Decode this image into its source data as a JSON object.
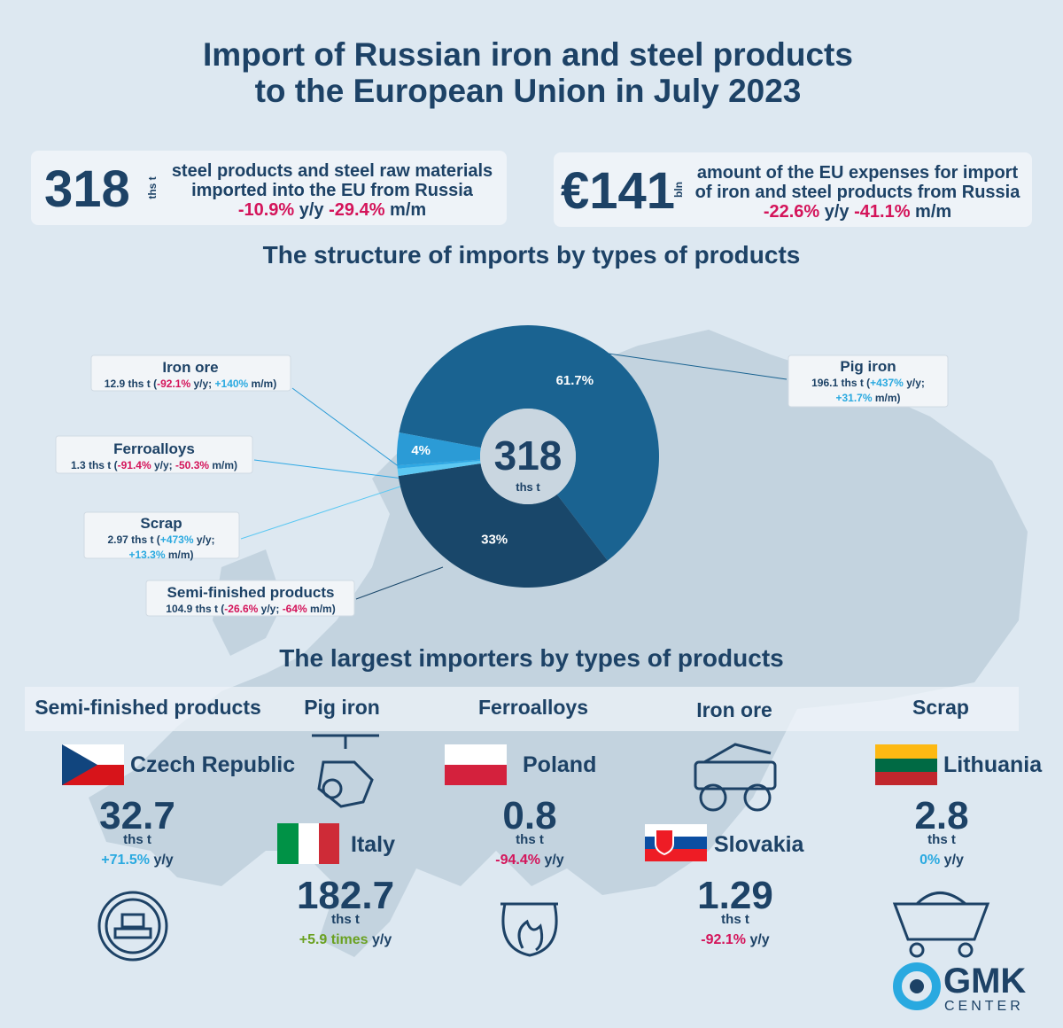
{
  "header": {
    "title_lines": [
      "Import of Russian iron and steel products",
      "to the European Union in July 2023"
    ]
  },
  "stats": [
    {
      "value": "318",
      "unit": "ths t",
      "lines": [
        "steel products and steel raw materials",
        "imported into the EU from Russia"
      ],
      "changes": [
        {
          "text": "-10.9%",
          "color": "#d4145a"
        },
        {
          "text": " y/y "
        },
        {
          "text": "-29.4%",
          "color": "#d4145a"
        },
        {
          "text": " m/m"
        }
      ]
    },
    {
      "value": "€141",
      "unit": "bln",
      "lines": [
        "amount of the EU expenses for import",
        "of iron and steel products from Russia"
      ],
      "changes": [
        {
          "text": "-22.6%",
          "color": "#d4145a"
        },
        {
          "text": " y/y "
        },
        {
          "text": "-41.1%",
          "color": "#d4145a"
        },
        {
          "text": " m/m"
        }
      ]
    }
  ],
  "chart_data": {
    "type": "pie",
    "title": "The structure of imports by types of products",
    "center_value": "318",
    "center_unit": "ths t",
    "categories": [
      "Pig iron",
      "Semi-finished products",
      "Scrap",
      "Ferroalloys",
      "Iron ore"
    ],
    "values": [
      61.7,
      33,
      0.9,
      0.4,
      4
    ],
    "value_labels": [
      "61.7%",
      "33%",
      null,
      null,
      "4%"
    ],
    "colors": [
      "#1a6391",
      "#19476a",
      "#5cc8f2",
      "#2fa8e4",
      "#2b9bd6"
    ],
    "details": [
      [
        [
          {
            "text": "196.1 ths t ("
          },
          {
            "text": "+437%",
            "color": "#29a9e0"
          },
          {
            "text": " y/y;"
          }
        ],
        [
          {
            "text": "+31.7%",
            "color": "#29a9e0"
          },
          {
            "text": " m/m)"
          }
        ]
      ],
      [
        [
          {
            "text": "104.9 ths t ("
          },
          {
            "text": "-26.6%",
            "color": "#d4145a"
          },
          {
            "text": " y/y; "
          },
          {
            "text": "-64%",
            "color": "#d4145a"
          },
          {
            "text": " m/m)"
          }
        ]
      ],
      [
        [
          {
            "text": "2.97 ths t ("
          },
          {
            "text": "+473%",
            "color": "#29a9e0"
          },
          {
            "text": " y/y;"
          }
        ],
        [
          {
            "text": "+13.3%",
            "color": "#29a9e0"
          },
          {
            "text": " m/m)"
          }
        ]
      ],
      [
        [
          {
            "text": "1.3 ths t ("
          },
          {
            "text": "-91.4%",
            "color": "#d4145a"
          },
          {
            "text": " y/y; "
          },
          {
            "text": "-50.3%",
            "color": "#d4145a"
          },
          {
            "text": " m/m)"
          }
        ]
      ],
      [
        [
          {
            "text": "12.9 ths t ("
          },
          {
            "text": "-92.1%",
            "color": "#d4145a"
          },
          {
            "text": " y/y; "
          },
          {
            "text": "+140%",
            "color": "#29a9e0"
          },
          {
            "text": " m/m)"
          }
        ]
      ]
    ]
  },
  "importers": {
    "title": "The largest importers by types of products",
    "columns": [
      {
        "heading": "Semi-finished products",
        "country": "Czech Republic",
        "value": "32.7",
        "unit": "ths t",
        "change": [
          {
            "text": "+71.5%",
            "color": "#29a9e0"
          },
          {
            "text": " y/y"
          }
        ]
      },
      {
        "heading": "Pig iron",
        "country": "Italy",
        "value": "182.7",
        "unit": "ths t",
        "change": [
          {
            "text": "+5.9 times",
            "color": "#6aa121"
          },
          {
            "text": " y/y"
          }
        ]
      },
      {
        "heading": "Ferroalloys",
        "country": "Poland",
        "value": "0.8",
        "unit": "ths t",
        "change": [
          {
            "text": "-94.4%",
            "color": "#d4145a"
          },
          {
            "text": " y/y"
          }
        ]
      },
      {
        "heading": "Iron ore",
        "country": "Slovakia",
        "value": "1.29",
        "unit": "ths t",
        "change": [
          {
            "text": "-92.1%",
            "color": "#d4145a"
          },
          {
            "text": " y/y"
          }
        ]
      },
      {
        "heading": "Scrap",
        "country": "Lithuania",
        "value": "2.8",
        "unit": "ths t",
        "change": [
          {
            "text": "0%",
            "color": "#29a9e0"
          },
          {
            "text": " y/y"
          }
        ]
      }
    ]
  },
  "logo": {
    "name": "GMK",
    "sub": "CENTER"
  }
}
